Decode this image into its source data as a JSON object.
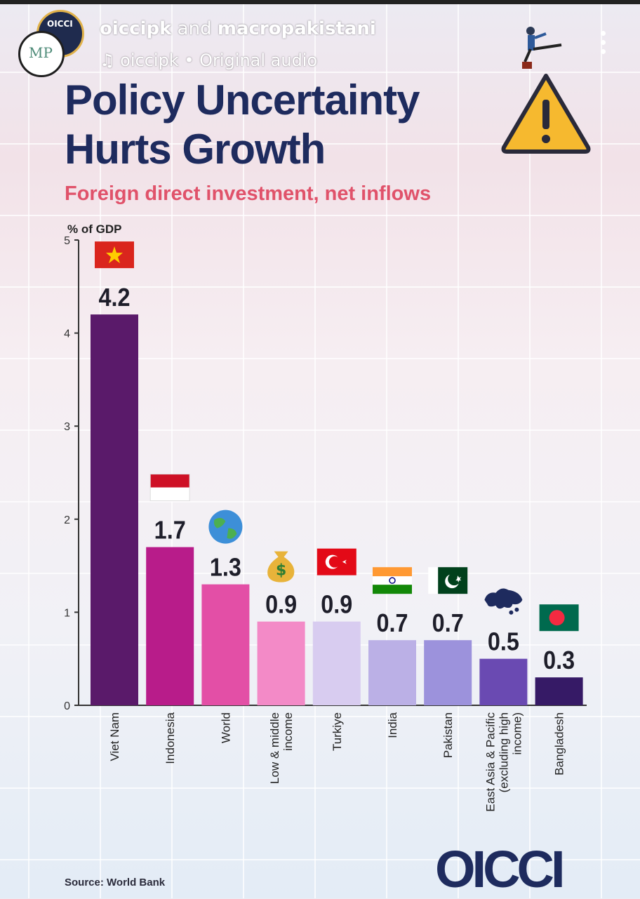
{
  "header": {
    "username_a": "oiccipk",
    "username_conj": " and ",
    "username_b": "macropakistani",
    "audio_text": "oiccipk • Original audio",
    "avatar_back_text": "OICCI",
    "avatar_front_text": "MP"
  },
  "chart_data": {
    "type": "bar",
    "title": "Policy Uncertainty Hurts Growth",
    "subtitle": "Foreign direct investment, net inflows",
    "ylabel": "% of GDP",
    "ylim": [
      0,
      5
    ],
    "yticks": [
      0,
      1,
      2,
      3,
      4,
      5
    ],
    "categories": [
      [
        "Viet Nam"
      ],
      [
        "Indonesia"
      ],
      [
        "World"
      ],
      [
        "Low & middle",
        "income"
      ],
      [
        "Turkiye"
      ],
      [
        "India"
      ],
      [
        "Pakistan"
      ],
      [
        "East Asia & Pacific",
        "(excluding high",
        "income)"
      ],
      [
        "Bangladesh"
      ]
    ],
    "value_labels": [
      "4.2",
      "1.7",
      "1.3",
      "0.9",
      "0.9",
      "0.7",
      "0.7",
      "0.5",
      "0.3"
    ],
    "values": [
      4.2,
      1.7,
      1.3,
      0.9,
      0.9,
      0.7,
      0.7,
      0.5,
      0.3
    ],
    "bar_colors": [
      "#5a1a6a",
      "#b81c8a",
      "#e34fa6",
      "#f38ac7",
      "#d8ccf0",
      "#bbb0e6",
      "#9c92dc",
      "#6a4ab2",
      "#361a66"
    ],
    "icons": [
      "vietnam-flag-icon",
      "indonesia-flag-icon",
      "globe-icon",
      "money-bag-icon",
      "turkey-flag-icon",
      "india-flag-icon",
      "pakistan-flag-icon",
      "asia-map-icon",
      "bangladesh-flag-icon"
    ],
    "grid": false
  },
  "footer": {
    "source": "Source: World Bank",
    "logo": "OICCI"
  },
  "colors": {
    "title": "#1e2b5e",
    "subtitle": "#e0526a"
  }
}
